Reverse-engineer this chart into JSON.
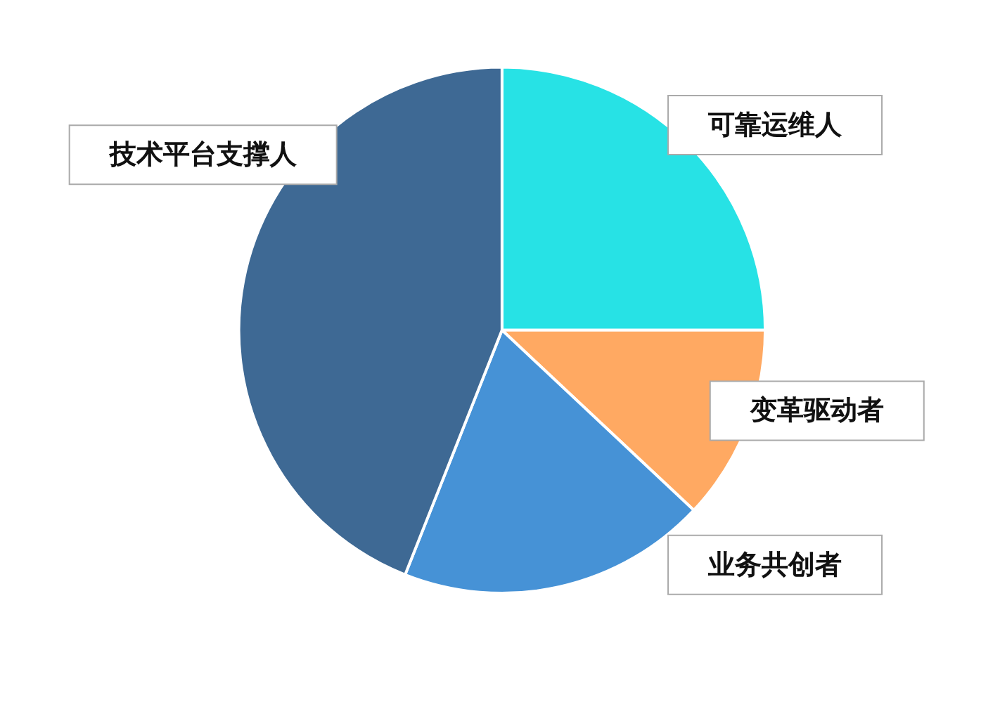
{
  "chart_data": {
    "type": "pie",
    "categories": [
      "可靠运维人",
      "变革驱动者",
      "业务共创者",
      "技术平台支撑人"
    ],
    "values": [
      25,
      12,
      19,
      44
    ],
    "colors": [
      "#27e2e5",
      "#ffa962",
      "#4692d6",
      "#3e6994"
    ]
  }
}
